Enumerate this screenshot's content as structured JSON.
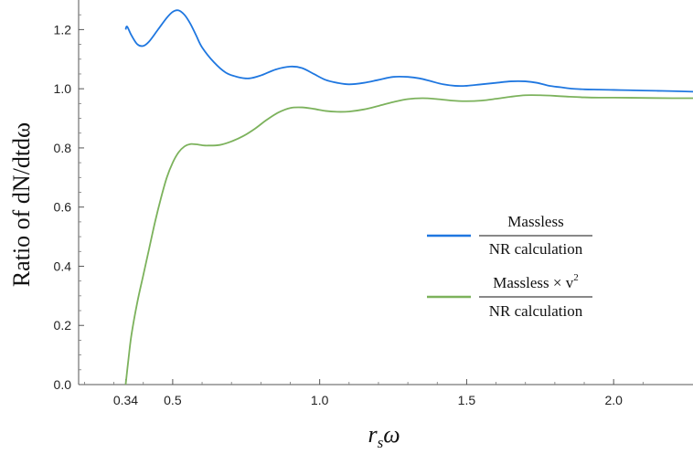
{
  "chart_data": {
    "type": "line",
    "xlabel_main": "r",
    "xlabel_sub": "s",
    "xlabel_tail": "ω",
    "ylabel": "Ratio of dN/dtdω",
    "xlim": [
      0.18,
      2.27
    ],
    "ylim": [
      0.0,
      1.3
    ],
    "x_ticks": [
      0.34,
      0.5,
      1.0,
      1.5,
      2.0
    ],
    "x_tick_labels": [
      "0.34",
      "0.5",
      "1.0",
      "1.5",
      "2.0"
    ],
    "y_ticks": [
      0.0,
      0.2,
      0.4,
      0.6,
      0.8,
      1.0,
      1.2
    ],
    "y_tick_labels": [
      "0.0",
      "0.2",
      "0.4",
      "0.6",
      "0.8",
      "1.0",
      "1.2"
    ],
    "legend_position": "right",
    "series": [
      {
        "legend_numerator": "Massless",
        "legend_numerator_suffix": "",
        "legend_numerator_power": "",
        "legend_denominator": "NR calculation",
        "color": "#1f77e0",
        "x": [
          0.34,
          0.345,
          0.36,
          0.38,
          0.4,
          0.42,
          0.45,
          0.48,
          0.5,
          0.52,
          0.54,
          0.56,
          0.58,
          0.6,
          0.64,
          0.68,
          0.72,
          0.76,
          0.8,
          0.85,
          0.9,
          0.94,
          0.98,
          1.02,
          1.06,
          1.1,
          1.15,
          1.2,
          1.25,
          1.3,
          1.34,
          1.38,
          1.42,
          1.46,
          1.5,
          1.55,
          1.6,
          1.65,
          1.7,
          1.74,
          1.78,
          1.82,
          1.86,
          1.9,
          1.95,
          2.0,
          2.05,
          2.1,
          2.15,
          2.2,
          2.27
        ],
        "y": [
          1.2,
          1.21,
          1.18,
          1.15,
          1.145,
          1.16,
          1.2,
          1.24,
          1.26,
          1.265,
          1.25,
          1.22,
          1.18,
          1.14,
          1.09,
          1.055,
          1.04,
          1.035,
          1.045,
          1.065,
          1.075,
          1.07,
          1.05,
          1.03,
          1.02,
          1.015,
          1.02,
          1.03,
          1.04,
          1.04,
          1.035,
          1.025,
          1.015,
          1.01,
          1.01,
          1.015,
          1.02,
          1.025,
          1.025,
          1.02,
          1.01,
          1.005,
          1.0,
          0.998,
          0.997,
          0.996,
          0.995,
          0.994,
          0.993,
          0.992,
          0.99
        ]
      },
      {
        "legend_numerator": "Massless",
        "legend_numerator_suffix": " × v",
        "legend_numerator_power": "2",
        "legend_denominator": "NR calculation",
        "color": "#7cb25c",
        "x": [
          0.34,
          0.35,
          0.36,
          0.38,
          0.4,
          0.42,
          0.44,
          0.46,
          0.48,
          0.5,
          0.52,
          0.54,
          0.56,
          0.58,
          0.6,
          0.62,
          0.66,
          0.7,
          0.74,
          0.78,
          0.82,
          0.86,
          0.9,
          0.94,
          0.98,
          1.02,
          1.06,
          1.1,
          1.15,
          1.2,
          1.25,
          1.3,
          1.35,
          1.4,
          1.45,
          1.5,
          1.55,
          1.6,
          1.65,
          1.7,
          1.75,
          1.8,
          1.85,
          1.9,
          1.95,
          2.0,
          2.1,
          2.2,
          2.27
        ],
        "y": [
          0.0,
          0.09,
          0.17,
          0.28,
          0.37,
          0.46,
          0.55,
          0.63,
          0.7,
          0.75,
          0.785,
          0.805,
          0.813,
          0.812,
          0.809,
          0.808,
          0.81,
          0.822,
          0.84,
          0.865,
          0.895,
          0.92,
          0.935,
          0.937,
          0.932,
          0.925,
          0.922,
          0.923,
          0.93,
          0.942,
          0.955,
          0.965,
          0.968,
          0.965,
          0.96,
          0.958,
          0.96,
          0.966,
          0.973,
          0.978,
          0.978,
          0.976,
          0.973,
          0.971,
          0.97,
          0.97,
          0.969,
          0.968,
          0.968
        ]
      }
    ]
  }
}
